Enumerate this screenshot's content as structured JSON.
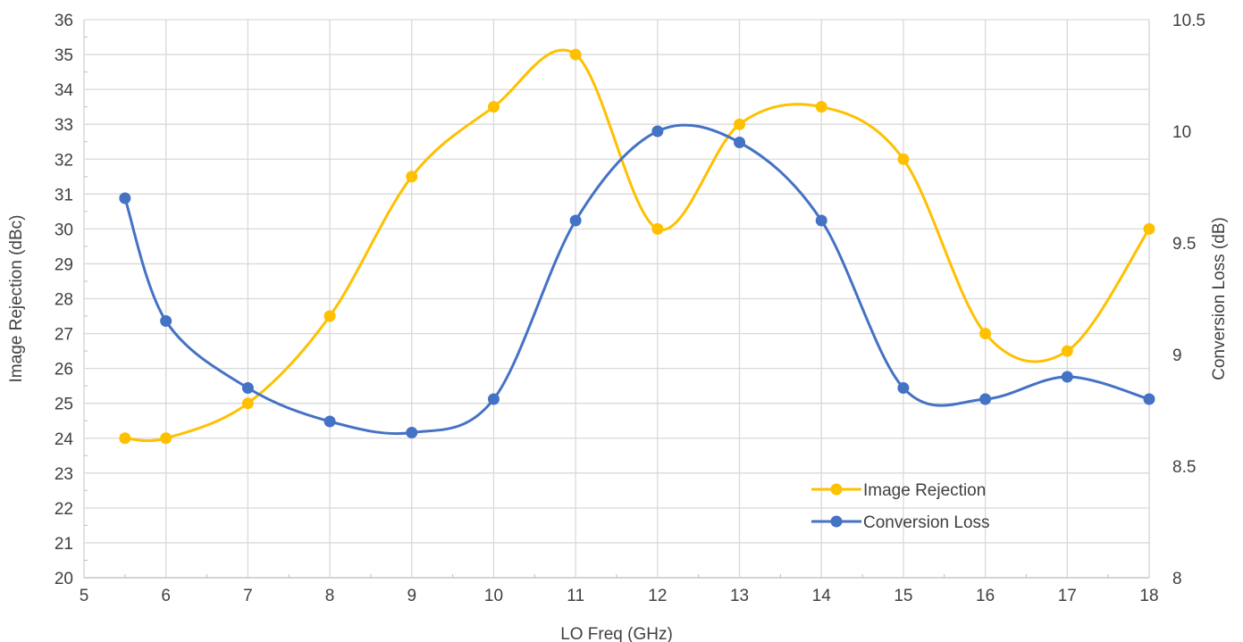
{
  "chart_data": {
    "type": "line",
    "title": "",
    "xlabel": "LO Freq (GHz)",
    "ylabel": "Image Rejection (dBc)",
    "y2label": "Conversion Loss (dB)",
    "xlim": [
      5,
      18
    ],
    "ylim": [
      20,
      36
    ],
    "y2lim": [
      8,
      10.5
    ],
    "x_ticks": [
      "5",
      "6",
      "7",
      "8",
      "9",
      "10",
      "11",
      "12",
      "13",
      "14",
      "15",
      "16",
      "17",
      "18"
    ],
    "y_ticks": [
      "20",
      "21",
      "22",
      "23",
      "24",
      "25",
      "26",
      "27",
      "28",
      "29",
      "30",
      "31",
      "32",
      "33",
      "34",
      "35",
      "36"
    ],
    "y2_ticks": [
      "8",
      "8.5",
      "9",
      "9.5",
      "10",
      "10.5"
    ],
    "grid": true,
    "smooth": true,
    "legend_position": "bottom-right",
    "series": [
      {
        "name": "Image Rejection",
        "axis": "left",
        "color": "#FFC000",
        "x": [
          5.5,
          6,
          7,
          8,
          9,
          10,
          11,
          12,
          13,
          14,
          15,
          16,
          17,
          18
        ],
        "values": [
          24,
          24,
          25,
          27.5,
          31.5,
          33.5,
          35,
          30,
          33,
          33.5,
          32,
          27,
          26.5,
          30
        ]
      },
      {
        "name": "Conversion Loss",
        "axis": "right",
        "color": "#4472C4",
        "x": [
          5.5,
          6,
          7,
          8,
          9,
          10,
          11,
          12,
          13,
          14,
          15,
          16,
          17,
          18
        ],
        "values": [
          9.7,
          9.15,
          8.85,
          8.7,
          8.65,
          8.8,
          9.6,
          10,
          9.95,
          9.6,
          8.85,
          8.8,
          8.9,
          8.8
        ]
      }
    ]
  }
}
